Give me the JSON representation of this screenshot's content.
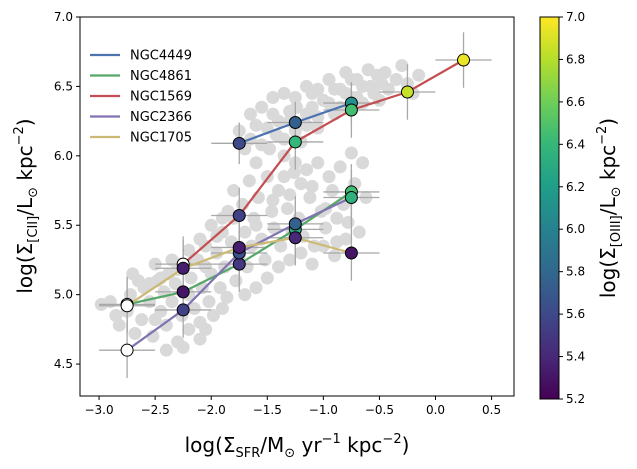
{
  "chart_data": {
    "type": "scatter",
    "xlabel": "log(Σ_SFR/M⊙ yr⁻¹ kpc⁻²)",
    "ylabel": "log(Σ_[CII]/L⊙ kpc⁻²)",
    "xlabel_parts": {
      "main": "log(Σ",
      "sub": "SFR",
      "mid": "/M",
      "sun": "⊙",
      "tail": " yr",
      "sup1": "−1",
      "tail2": " kpc",
      "sup2": "−2",
      "close": ")"
    },
    "ylabel_parts": {
      "main": "log(Σ",
      "sub": "[CII]",
      "mid": "/L",
      "sun": "⊙",
      "tail": " kpc",
      "sup": "−2",
      "close": ")"
    },
    "xlim": [
      -3.17,
      0.7
    ],
    "ylim": [
      4.27,
      7.0
    ],
    "xticks": [
      -3.0,
      -2.5,
      -2.0,
      -1.5,
      -1.0,
      -0.5,
      0.0,
      0.5
    ],
    "xtick_labels": [
      "−3.0",
      "−2.5",
      "−2.0",
      "−1.5",
      "−1.0",
      "−0.5",
      "0.0",
      "0.5"
    ],
    "yticks": [
      4.5,
      5.0,
      5.5,
      6.0,
      6.5,
      7.0
    ],
    "ytick_labels": [
      "4.5",
      "5.0",
      "5.5",
      "6.0",
      "6.5",
      "7.0"
    ],
    "legend_position": "upper-left",
    "colorbar": {
      "label": "log(Σ_[OIII]/L⊙ kpc⁻²)",
      "label_parts": {
        "main": "log(Σ",
        "sub": "[OIII]",
        "mid": "/L",
        "sun": "⊙",
        "tail": " kpc",
        "sup": "−2",
        "close": ")"
      },
      "colormap": "viridis",
      "range": [
        5.2,
        7.0
      ],
      "ticks": [
        5.2,
        5.4,
        5.6,
        5.8,
        6.0,
        6.2,
        6.4,
        6.6,
        6.8,
        7.0
      ],
      "tick_labels": [
        "5.2",
        "5.4",
        "5.6",
        "5.8",
        "6.0",
        "6.2",
        "6.4",
        "6.6",
        "6.8",
        "7.0"
      ],
      "stops": [
        "#440154",
        "#482878",
        "#3e4989",
        "#31688e",
        "#26828e",
        "#1f9e89",
        "#35b779",
        "#6ece58",
        "#b5de2b",
        "#fde725"
      ]
    },
    "background": {
      "name": "spaxels",
      "color": "#d9d9d9",
      "points": [
        [
          -2.98,
          4.93
        ],
        [
          -2.9,
          4.95
        ],
        [
          -2.85,
          4.85
        ],
        [
          -2.82,
          4.78
        ],
        [
          -2.75,
          4.88
        ],
        [
          -2.72,
          5.0
        ],
        [
          -2.68,
          4.72
        ],
        [
          -2.62,
          4.82
        ],
        [
          -2.6,
          5.05
        ],
        [
          -2.55,
          4.95
        ],
        [
          -2.52,
          4.7
        ],
        [
          -2.48,
          5.1
        ],
        [
          -2.45,
          4.88
        ],
        [
          -2.42,
          5.02
        ],
        [
          -2.4,
          4.78
        ],
        [
          -2.38,
          5.15
        ],
        [
          -2.35,
          4.95
        ],
        [
          -2.32,
          5.08
        ],
        [
          -2.3,
          4.66
        ],
        [
          -2.28,
          5.22
        ],
        [
          -2.26,
          4.85
        ],
        [
          -2.25,
          4.62
        ],
        [
          -2.2,
          5.0
        ],
        [
          -2.18,
          5.12
        ],
        [
          -2.15,
          4.9
        ],
        [
          -2.12,
          5.25
        ],
        [
          -2.1,
          4.8
        ],
        [
          -2.08,
          5.05
        ],
        [
          -2.05,
          5.35
        ],
        [
          -2.02,
          4.95
        ],
        [
          -2.0,
          5.15
        ],
        [
          -1.98,
          4.85
        ],
        [
          -1.95,
          5.3
        ],
        [
          -1.92,
          5.05
        ],
        [
          -1.9,
          5.45
        ],
        [
          -1.88,
          5.2
        ],
        [
          -1.86,
          4.98
        ],
        [
          -1.82,
          5.38
        ],
        [
          -1.8,
          5.55
        ],
        [
          -1.78,
          5.1
        ],
        [
          -1.75,
          5.28
        ],
        [
          -1.72,
          5.65
        ],
        [
          -1.7,
          5.45
        ],
        [
          -1.68,
          5.2
        ],
        [
          -1.66,
          5.82
        ],
        [
          -1.64,
          5.35
        ],
        [
          -1.62,
          5.55
        ],
        [
          -1.6,
          5.95
        ],
        [
          -1.58,
          5.7
        ],
        [
          -1.55,
          5.4
        ],
        [
          -1.52,
          5.25
        ],
        [
          -1.5,
          5.85
        ],
        [
          -1.48,
          6.05
        ],
        [
          -1.46,
          5.6
        ],
        [
          -1.44,
          5.48
        ],
        [
          -1.42,
          6.15
        ],
        [
          -1.4,
          5.75
        ],
        [
          -1.38,
          5.35
        ],
        [
          -1.35,
          6.0
        ],
        [
          -1.32,
          5.62
        ],
        [
          -1.3,
          6.25
        ],
        [
          -1.28,
          5.45
        ],
        [
          -1.26,
          5.88
        ],
        [
          -1.24,
          6.35
        ],
        [
          -1.22,
          5.55
        ],
        [
          -1.2,
          6.1
        ],
        [
          -1.18,
          5.42
        ],
        [
          -1.15,
          6.3
        ],
        [
          -1.12,
          5.7
        ],
        [
          -1.1,
          6.45
        ],
        [
          -1.08,
          5.35
        ],
        [
          -1.05,
          6.2
        ],
        [
          -1.02,
          5.6
        ],
        [
          -1.0,
          6.4
        ],
        [
          -0.98,
          5.48
        ],
        [
          -0.95,
          6.55
        ],
        [
          -0.92,
          5.75
        ],
        [
          -0.9,
          6.3
        ],
        [
          -0.88,
          5.38
        ],
        [
          -0.85,
          6.48
        ],
        [
          -0.82,
          5.65
        ],
        [
          -0.8,
          6.6
        ],
        [
          -0.78,
          5.52
        ],
        [
          -0.75,
          6.42
        ],
        [
          -0.72,
          5.8
        ],
        [
          -0.7,
          6.55
        ],
        [
          -0.68,
          5.45
        ],
        [
          -0.65,
          6.38
        ],
        [
          -0.62,
          5.7
        ],
        [
          -0.6,
          6.62
        ],
        [
          -0.58,
          6.5
        ],
        [
          -0.55,
          6.45
        ],
        [
          -0.52,
          6.58
        ],
        [
          -0.5,
          6.4
        ],
        [
          -0.48,
          6.52
        ],
        [
          -0.45,
          6.6
        ],
        [
          -0.42,
          6.48
        ],
        [
          -0.35,
          6.55
        ],
        [
          -0.3,
          6.65
        ],
        [
          -0.25,
          6.52
        ],
        [
          -0.2,
          6.45
        ],
        [
          -0.15,
          6.58
        ],
        [
          -1.75,
          6.18
        ],
        [
          -1.7,
          6.05
        ],
        [
          -1.65,
          6.12
        ],
        [
          -1.6,
          6.22
        ],
        [
          -1.55,
          6.08
        ],
        [
          -1.5,
          6.2
        ],
        [
          -1.45,
          6.3
        ],
        [
          -1.4,
          6.25
        ],
        [
          -1.35,
          6.12
        ],
        [
          -1.3,
          6.32
        ],
        [
          -1.25,
          6.18
        ],
        [
          -1.15,
          6.22
        ],
        [
          -1.1,
          6.35
        ],
        [
          -1.05,
          6.28
        ],
        [
          -0.95,
          6.38
        ],
        [
          -0.9,
          6.48
        ],
        [
          -0.85,
          6.35
        ],
        [
          -0.8,
          6.45
        ],
        [
          -0.75,
          6.55
        ],
        [
          -0.7,
          6.42
        ],
        [
          -0.65,
          6.5
        ],
        [
          -1.8,
          5.75
        ],
        [
          -1.85,
          5.6
        ],
        [
          -1.9,
          5.55
        ],
        [
          -1.95,
          5.42
        ],
        [
          -2.0,
          5.5
        ],
        [
          -2.05,
          5.2
        ],
        [
          -2.1,
          5.4
        ],
        [
          -2.15,
          5.25
        ],
        [
          -2.2,
          5.32
        ],
        [
          -2.3,
          5.18
        ],
        [
          -2.35,
          5.25
        ],
        [
          -2.45,
          5.12
        ],
        [
          -2.5,
          5.22
        ],
        [
          -2.55,
          5.08
        ],
        [
          -2.65,
          5.1
        ],
        [
          -2.7,
          5.15
        ],
        [
          -1.6,
          5.05
        ],
        [
          -1.5,
          5.12
        ],
        [
          -1.4,
          5.2
        ],
        [
          -1.3,
          5.25
        ],
        [
          -1.2,
          5.3
        ],
        [
          -1.1,
          5.22
        ],
        [
          -1.0,
          5.35
        ],
        [
          -0.9,
          5.28
        ],
        [
          -0.8,
          5.4
        ],
        [
          -2.1,
          4.68
        ],
        [
          -2.2,
          4.75
        ],
        [
          -2.4,
          4.6
        ],
        [
          -2.5,
          4.82
        ],
        [
          -2.05,
          4.75
        ],
        [
          -1.9,
          4.9
        ],
        [
          -1.7,
          5.0
        ],
        [
          -1.35,
          5.85
        ],
        [
          -1.25,
          5.95
        ],
        [
          -1.15,
          5.9
        ],
        [
          -1.05,
          5.95
        ],
        [
          -0.95,
          5.85
        ],
        [
          -0.85,
          5.92
        ],
        [
          -0.75,
          6.02
        ],
        [
          -0.65,
          5.95
        ],
        [
          -1.6,
          5.5
        ],
        [
          -1.45,
          5.68
        ],
        [
          -1.3,
          5.72
        ],
        [
          -1.2,
          5.8
        ],
        [
          -1.1,
          5.78
        ],
        [
          -0.98,
          5.62
        ],
        [
          -0.88,
          5.55
        ],
        [
          -0.78,
          5.68
        ],
        [
          -1.65,
          6.3
        ],
        [
          -1.55,
          6.35
        ],
        [
          -1.45,
          6.42
        ],
        [
          -1.35,
          6.45
        ],
        [
          -1.25,
          6.42
        ],
        [
          -1.15,
          6.5
        ],
        [
          -1.05,
          6.48
        ]
      ]
    },
    "series": [
      {
        "name": "NGC4449",
        "color": "#4c72b0",
        "points": [
          {
            "x": -1.75,
            "y": 6.09,
            "z": 5.6,
            "xerr": 0.25,
            "yerr": 0.15
          },
          {
            "x": -1.25,
            "y": 6.24,
            "z": 5.75,
            "xerr": 0.25,
            "yerr": 0.15
          },
          {
            "x": -0.75,
            "y": 6.38,
            "z": 6.1,
            "xerr": 0.25,
            "yerr": 0.15
          }
        ]
      },
      {
        "name": "NGC4861",
        "color": "#55a868",
        "points": [
          {
            "x": -2.75,
            "y": 4.93,
            "z": null,
            "xerr": 0.25,
            "yerr": 0.2
          },
          {
            "x": -2.25,
            "y": 5.02,
            "z": 5.3,
            "xerr": 0.25,
            "yerr": 0.2
          },
          {
            "x": -1.75,
            "y": 5.22,
            "z": 5.5,
            "xerr": 0.25,
            "yerr": 0.2
          },
          {
            "x": -1.25,
            "y": 5.47,
            "z": 6.3,
            "xerr": 0.25,
            "yerr": 0.2
          },
          {
            "x": -0.75,
            "y": 5.74,
            "z": 6.45,
            "xerr": 0.25,
            "yerr": 0.2
          }
        ]
      },
      {
        "name": "NGC1569",
        "color": "#c44e52",
        "points": [
          {
            "x": -2.25,
            "y": 5.22,
            "z": null,
            "xerr": 0.25,
            "yerr": 0.2
          },
          {
            "x": -1.75,
            "y": 5.57,
            "z": 5.55,
            "xerr": 0.25,
            "yerr": 0.2
          },
          {
            "x": -1.25,
            "y": 6.1,
            "z": 6.4,
            "xerr": 0.25,
            "yerr": 0.2
          },
          {
            "x": -0.75,
            "y": 6.33,
            "z": 6.45,
            "xerr": 0.25,
            "yerr": 0.2
          },
          {
            "x": -0.25,
            "y": 6.46,
            "z": 6.85,
            "xerr": 0.25,
            "yerr": 0.2
          },
          {
            "x": 0.25,
            "y": 6.69,
            "z": 6.95,
            "xerr": 0.25,
            "yerr": 0.2
          }
        ]
      },
      {
        "name": "NGC2366",
        "color": "#8172b2",
        "points": [
          {
            "x": -2.75,
            "y": 4.6,
            "z": null,
            "xerr": 0.25,
            "yerr": 0.2
          },
          {
            "x": -2.25,
            "y": 4.89,
            "z": 5.55,
            "xerr": 0.25,
            "yerr": 0.2
          },
          {
            "x": -1.75,
            "y": 5.3,
            "z": 5.65,
            "xerr": 0.25,
            "yerr": 0.2
          },
          {
            "x": -1.25,
            "y": 5.51,
            "z": 5.75,
            "xerr": 0.25,
            "yerr": 0.2
          },
          {
            "x": -0.75,
            "y": 5.7,
            "z": 6.35,
            "xerr": 0.25,
            "yerr": 0.2
          }
        ]
      },
      {
        "name": "NGC1705",
        "color": "#ccb974",
        "points": [
          {
            "x": -2.75,
            "y": 4.92,
            "z": null,
            "xerr": 0.25,
            "yerr": 0.2
          },
          {
            "x": -2.25,
            "y": 5.19,
            "z": 5.35,
            "xerr": 0.25,
            "yerr": 0.2
          },
          {
            "x": -1.75,
            "y": 5.34,
            "z": 5.35,
            "xerr": 0.25,
            "yerr": 0.2
          },
          {
            "x": -1.25,
            "y": 5.41,
            "z": 5.4,
            "xerr": 0.25,
            "yerr": 0.2
          },
          {
            "x": -0.75,
            "y": 5.3,
            "z": 5.3,
            "xerr": 0.25,
            "yerr": 0.2
          }
        ]
      }
    ]
  }
}
